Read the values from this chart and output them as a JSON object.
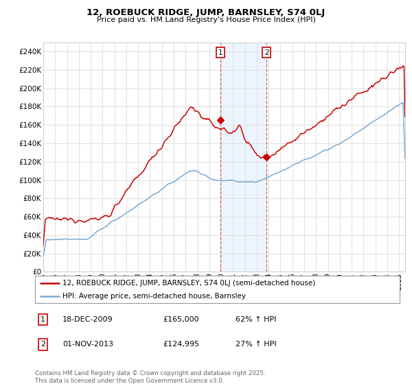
{
  "title": "12, ROEBUCK RIDGE, JUMP, BARNSLEY, S74 0LJ",
  "subtitle": "Price paid vs. HM Land Registry's House Price Index (HPI)",
  "ylabel_ticks": [
    "£0",
    "£20K",
    "£40K",
    "£60K",
    "£80K",
    "£100K",
    "£120K",
    "£140K",
    "£160K",
    "£180K",
    "£200K",
    "£220K",
    "£240K"
  ],
  "ytick_values": [
    0,
    20000,
    40000,
    60000,
    80000,
    100000,
    120000,
    140000,
    160000,
    180000,
    200000,
    220000,
    240000
  ],
  "ylim": [
    0,
    250000
  ],
  "xlim_start": 1995.0,
  "xlim_end": 2025.5,
  "red_color": "#cc0000",
  "blue_color": "#7aaad4",
  "sale1_x": 2009.96,
  "sale1_y": 165000,
  "sale1_label": "1",
  "sale1_date": "18-DEC-2009",
  "sale1_price": "£165,000",
  "sale1_hpi": "62% ↑ HPI",
  "sale2_x": 2013.84,
  "sale2_y": 124995,
  "sale2_label": "2",
  "sale2_date": "01-NOV-2013",
  "sale2_price": "£124,995",
  "sale2_hpi": "27% ↑ HPI",
  "legend_line1": "12, ROEBUCK RIDGE, JUMP, BARNSLEY, S74 0LJ (semi-detached house)",
  "legend_line2": "HPI: Average price, semi-detached house, Barnsley",
  "footnote": "Contains HM Land Registry data © Crown copyright and database right 2025.\nThis data is licensed under the Open Government Licence v3.0.",
  "background_color": "#ffffff",
  "grid_color": "#e0e0e0",
  "shade_color": "#ddeeff"
}
